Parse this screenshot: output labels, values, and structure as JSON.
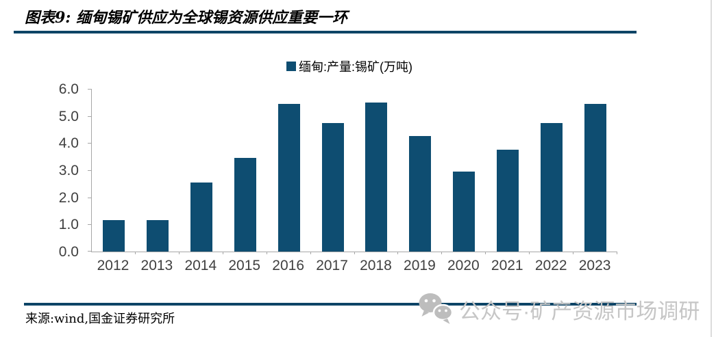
{
  "header": {
    "title": "图表9: 缅甸锡矿供应为全球锡资源供应重要一环"
  },
  "chart_data": {
    "type": "bar",
    "title": "缅甸锡矿供应为全球锡资源供应重要一环",
    "categories": [
      "2012",
      "2013",
      "2014",
      "2015",
      "2016",
      "2017",
      "2018",
      "2019",
      "2020",
      "2021",
      "2022",
      "2023"
    ],
    "values": [
      1.15,
      1.15,
      2.55,
      3.45,
      5.45,
      4.75,
      5.5,
      4.25,
      2.95,
      3.75,
      4.75,
      5.45
    ],
    "legend": [
      "缅甸:产量:锡矿(万吨)"
    ],
    "legend_position": "top",
    "xlabel": "",
    "ylabel": "",
    "ylim": [
      0,
      6
    ],
    "yticks": [
      "0.0",
      "1.0",
      "2.0",
      "3.0",
      "4.0",
      "5.0",
      "6.0"
    ],
    "grid": false,
    "bar_color": "#0e4d71",
    "axis_color": "#a6a6a6",
    "tick_label_color": "#404040"
  },
  "footer": {
    "source": "来源:wind,国金证券研究所"
  },
  "watermark": {
    "icon": "wechat-icon",
    "text": "公众号·矿产资源市场调研",
    "color": "#c6c6c6"
  },
  "colors": {
    "accent_rule": "#0d4466",
    "bar": "#0e4d71",
    "page_border": "#dcdcdc"
  }
}
